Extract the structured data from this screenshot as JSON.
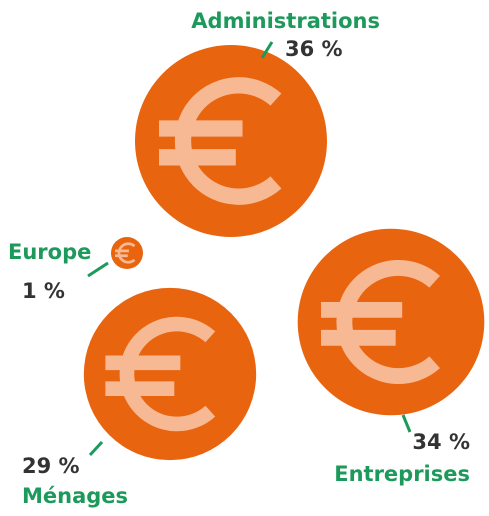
{
  "chart_data": {
    "type": "bubble",
    "categories": [
      "Administrations",
      "Entreprises",
      "Ménages",
      "Europe"
    ],
    "values": [
      36,
      34,
      29,
      1
    ],
    "value_labels": [
      "36 %",
      "34 %",
      "29 %",
      "1 %"
    ],
    "color": "#e8640f"
  }
}
